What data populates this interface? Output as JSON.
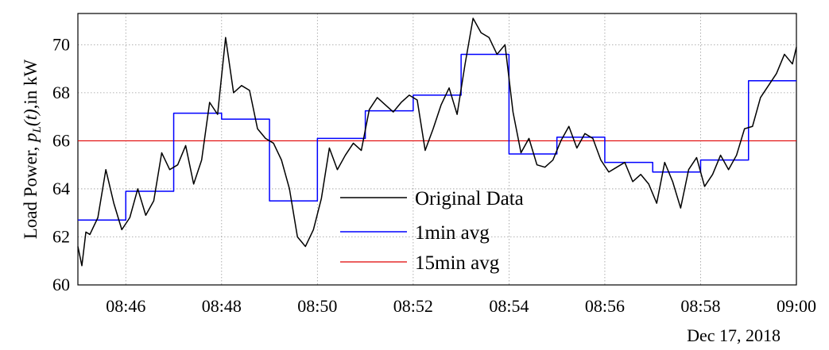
{
  "chart_data": {
    "type": "line",
    "x_unit": "time (HH:MM)",
    "xlim": [
      "08:45",
      "09:00"
    ],
    "ylim": [
      60,
      71.3
    ],
    "x_ticks": [
      "08:46",
      "08:48",
      "08:50",
      "08:52",
      "08:54",
      "08:56",
      "08:58",
      "09:00"
    ],
    "y_ticks": [
      60,
      62,
      64,
      66,
      68,
      70
    ],
    "date_label": "Dec 17, 2018",
    "ylabel": {
      "prefix": "Load Power, ",
      "symbol": "p",
      "subscript": "L",
      "arg": "(t)",
      "suffix": ",in kW"
    },
    "grid": true,
    "legend_position": "center-bottom",
    "series": [
      {
        "name": "Original Data",
        "color": "#000000",
        "style": "line",
        "x": [
          "08:45:00",
          "08:45:05",
          "08:45:10",
          "08:45:15",
          "08:45:25",
          "08:45:35",
          "08:45:45",
          "08:45:55",
          "08:46:05",
          "08:46:15",
          "08:46:25",
          "08:46:35",
          "08:46:45",
          "08:46:55",
          "08:47:05",
          "08:47:15",
          "08:47:25",
          "08:47:35",
          "08:47:45",
          "08:47:55",
          "08:48:05",
          "08:48:15",
          "08:48:25",
          "08:48:35",
          "08:48:45",
          "08:48:55",
          "08:49:05",
          "08:49:15",
          "08:49:25",
          "08:49:35",
          "08:49:45",
          "08:49:55",
          "08:50:05",
          "08:50:15",
          "08:50:25",
          "08:50:35",
          "08:50:45",
          "08:50:55",
          "08:51:05",
          "08:51:15",
          "08:51:25",
          "08:51:35",
          "08:51:45",
          "08:51:55",
          "08:52:05",
          "08:52:15",
          "08:52:25",
          "08:52:35",
          "08:52:45",
          "08:52:55",
          "08:53:05",
          "08:53:15",
          "08:53:25",
          "08:53:35",
          "08:53:45",
          "08:53:55",
          "08:54:05",
          "08:54:15",
          "08:54:25",
          "08:54:35",
          "08:54:45",
          "08:54:55",
          "08:55:05",
          "08:55:15",
          "08:55:25",
          "08:55:35",
          "08:55:45",
          "08:55:55",
          "08:56:05",
          "08:56:15",
          "08:56:25",
          "08:56:35",
          "08:56:45",
          "08:56:55",
          "08:57:05",
          "08:57:15",
          "08:57:25",
          "08:57:35",
          "08:57:45",
          "08:57:55",
          "08:58:05",
          "08:58:15",
          "08:58:25",
          "08:58:35",
          "08:58:45",
          "08:58:55",
          "08:59:05",
          "08:59:15",
          "08:59:25",
          "08:59:35",
          "08:59:45",
          "08:59:55",
          "09:00:00"
        ],
        "values": [
          61.6,
          60.8,
          62.2,
          62.1,
          62.8,
          64.8,
          63.4,
          62.3,
          62.8,
          64.0,
          62.9,
          63.5,
          65.5,
          64.8,
          65.0,
          65.8,
          64.2,
          65.2,
          67.6,
          67.1,
          70.3,
          68.0,
          68.3,
          68.1,
          66.5,
          66.1,
          65.9,
          65.2,
          64.0,
          62.0,
          61.6,
          62.3,
          63.6,
          65.7,
          64.8,
          65.4,
          65.9,
          65.6,
          67.3,
          67.8,
          67.5,
          67.2,
          67.6,
          67.9,
          67.7,
          65.6,
          66.5,
          67.5,
          68.2,
          67.1,
          69.2,
          71.1,
          70.5,
          70.3,
          69.6,
          70.0,
          67.2,
          65.5,
          66.1,
          65.0,
          64.9,
          65.2,
          66.0,
          66.6,
          65.7,
          66.3,
          66.1,
          65.2,
          64.7,
          64.9,
          65.1,
          64.3,
          64.6,
          64.2,
          63.4,
          65.1,
          64.3,
          63.2,
          64.8,
          65.3,
          64.1,
          64.6,
          65.4,
          64.8,
          65.4,
          66.5,
          66.6,
          67.8,
          68.3,
          68.8,
          69.6,
          69.2,
          69.9
        ]
      },
      {
        "name": "1min avg",
        "color": "#0000ff",
        "style": "step",
        "x": [
          "08:45",
          "08:46",
          "08:47",
          "08:48",
          "08:49",
          "08:50",
          "08:51",
          "08:52",
          "08:53",
          "08:54",
          "08:55",
          "08:56",
          "08:57",
          "08:58",
          "08:59",
          "09:00"
        ],
        "values": [
          62.7,
          63.9,
          67.15,
          66.9,
          63.5,
          66.1,
          67.25,
          67.9,
          69.6,
          65.45,
          66.15,
          65.1,
          64.7,
          65.2,
          68.5,
          68.5
        ]
      },
      {
        "name": "15min avg",
        "color": "#e00000",
        "style": "line",
        "x": [
          "08:45",
          "09:00"
        ],
        "values": [
          66.0,
          66.0
        ]
      }
    ]
  }
}
